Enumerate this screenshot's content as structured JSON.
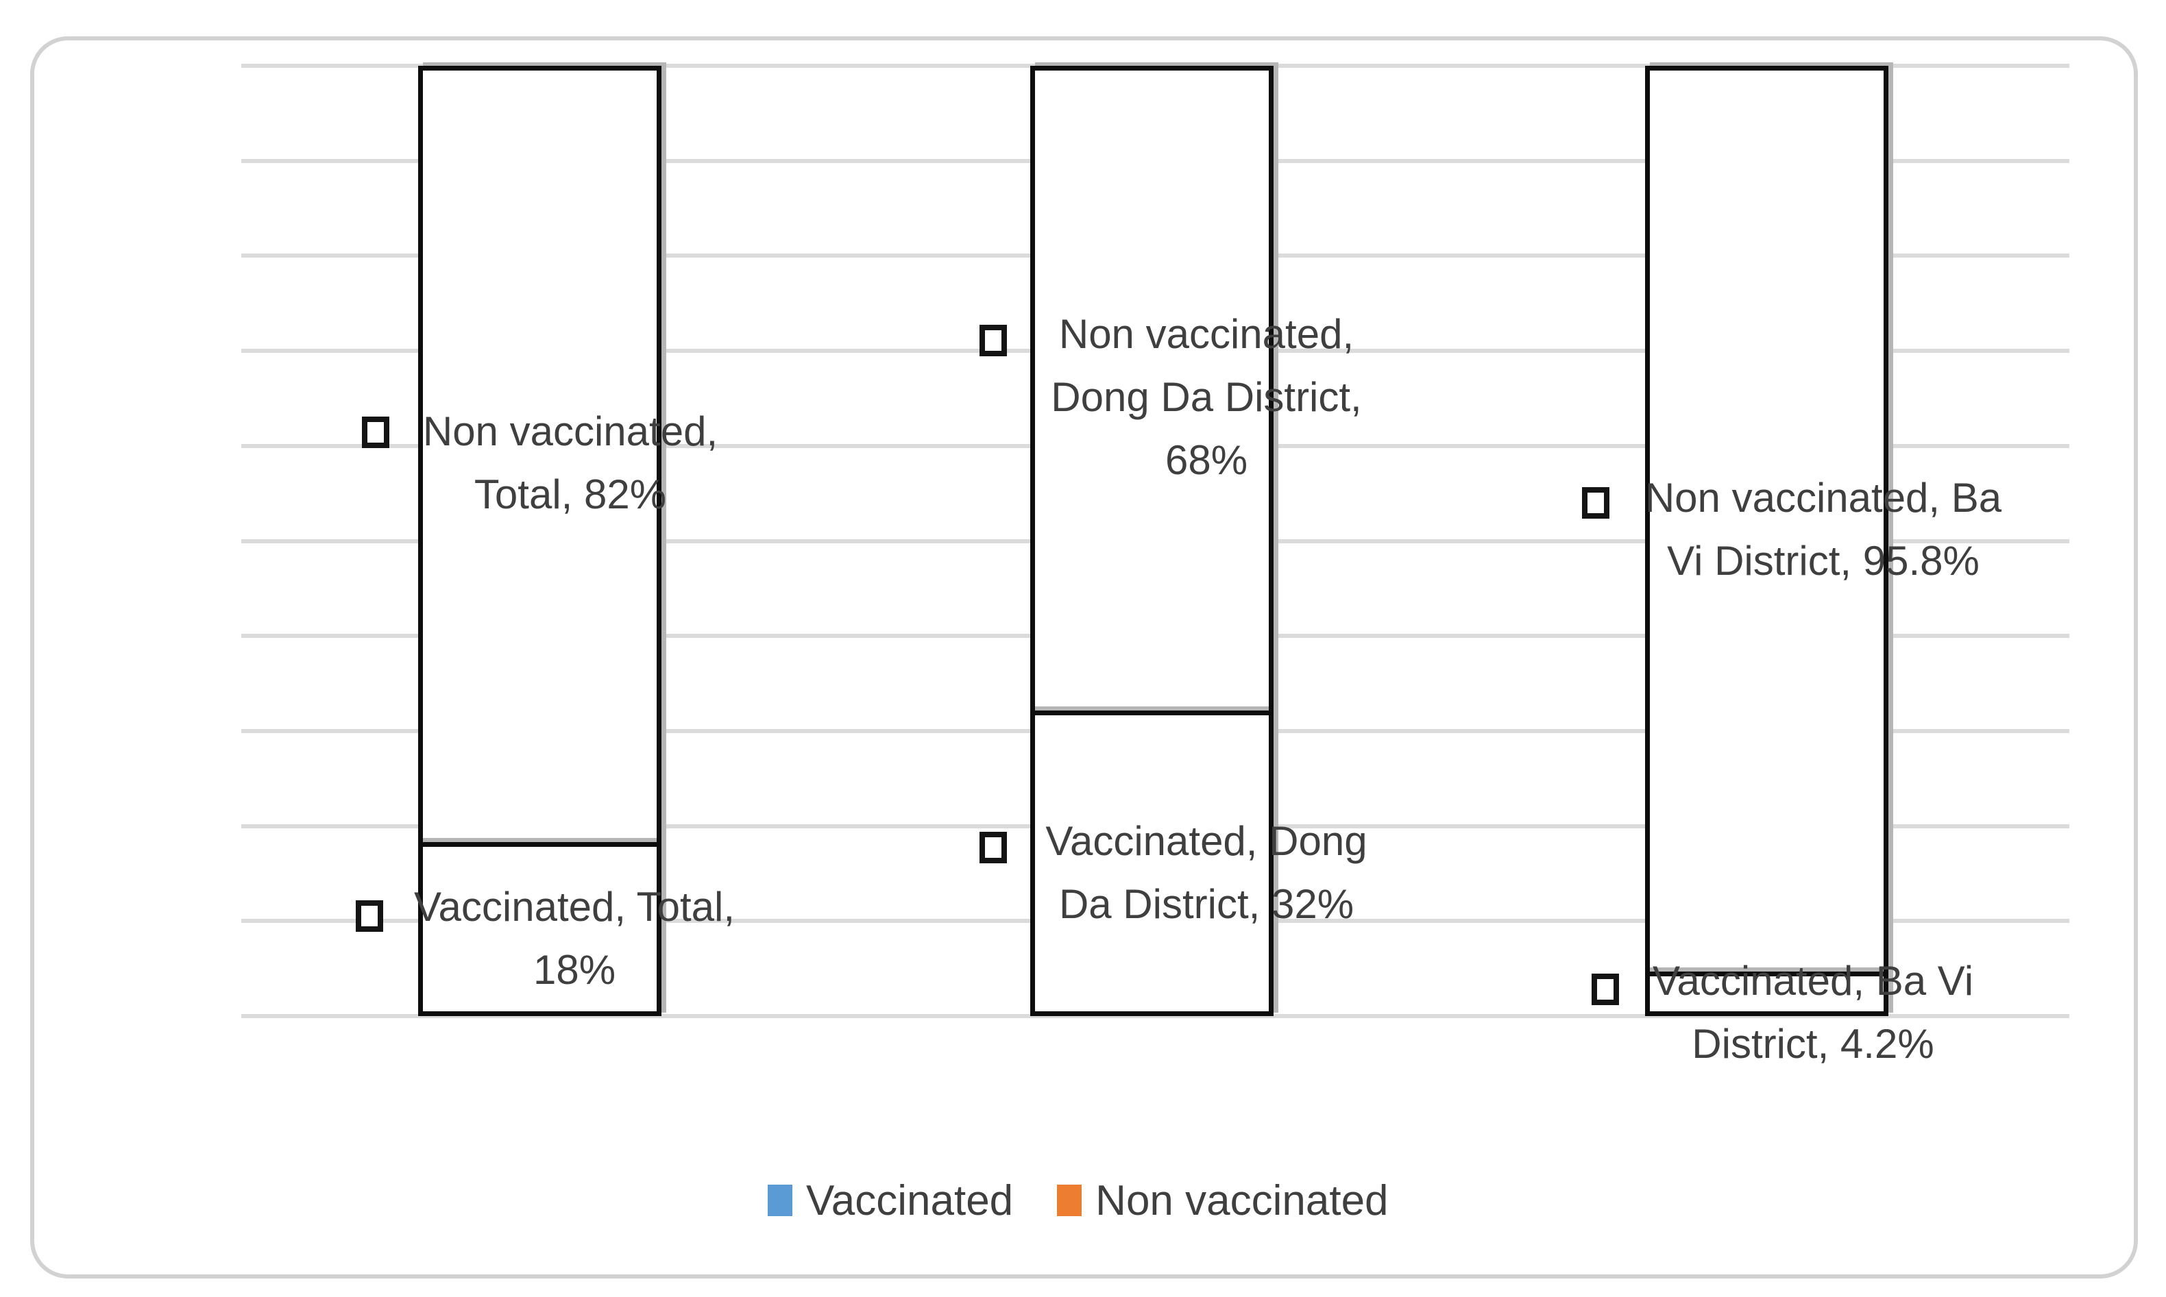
{
  "figure": {
    "background": "#FFFFFF",
    "frame_border_color": "#D2D2D2",
    "bar_fill": "#FFFFFF",
    "bar_outline": "#000000",
    "gridline_color": "#DBDBDB",
    "text_color": "#3F3F3F"
  },
  "chart_data": {
    "type": "bar",
    "subtype": "100% stacked column",
    "title": "",
    "categories": [
      "Total",
      "Dong Da District",
      "Ba Vi District"
    ],
    "series": [
      {
        "name": "Vaccinated",
        "values": [
          18,
          32,
          4.2
        ],
        "legend_color": "#5B9BD5"
      },
      {
        "name": "Non vaccinated",
        "values": [
          82,
          68,
          95.8
        ],
        "legend_color": "#ED7D31"
      }
    ],
    "value_format": "percent",
    "ylim": [
      0,
      100
    ],
    "gridline_interval": 10,
    "grid": true,
    "axis_tick_labels_visible": false,
    "legend_position": "bottom",
    "legend": [
      {
        "label": "Vaccinated",
        "color": "#5B9BD5"
      },
      {
        "label": "Non vaccinated",
        "color": "#ED7D31"
      }
    ],
    "data_labels": [
      {
        "series": "Non vaccinated",
        "category": "Total",
        "value": 82,
        "text": "Non vaccinated, Total, 82%",
        "lines": [
          "Non vaccinated,",
          "Total, 82%"
        ]
      },
      {
        "series": "Vaccinated",
        "category": "Total",
        "value": 18,
        "text": "Vaccinated, Total, 18%",
        "lines": [
          "Vaccinated, Total,",
          "18%"
        ]
      },
      {
        "series": "Non vaccinated",
        "category": "Dong Da District",
        "value": 68,
        "text": "Non vaccinated, Dong Da District, 68%",
        "lines": [
          "Non vaccinated,",
          "Dong Da District,",
          "68%"
        ]
      },
      {
        "series": "Vaccinated",
        "category": "Dong Da District",
        "value": 32,
        "text": "Vaccinated, Dong Da District, 32%",
        "lines": [
          "Vaccinated, Dong",
          "Da District, 32%"
        ]
      },
      {
        "series": "Non vaccinated",
        "category": "Ba Vi District",
        "value": 95.8,
        "text": "Non vaccinated, Ba Vi District, 95.8%",
        "lines": [
          "Non vaccinated, Ba",
          "Vi District, 95.8%"
        ]
      },
      {
        "series": "Vaccinated",
        "category": "Ba Vi District",
        "value": 4.2,
        "text": "Vaccinated, Ba Vi District, 4.2%",
        "lines": [
          "Vaccinated, Ba Vi",
          "District, 4.2%"
        ]
      }
    ]
  }
}
